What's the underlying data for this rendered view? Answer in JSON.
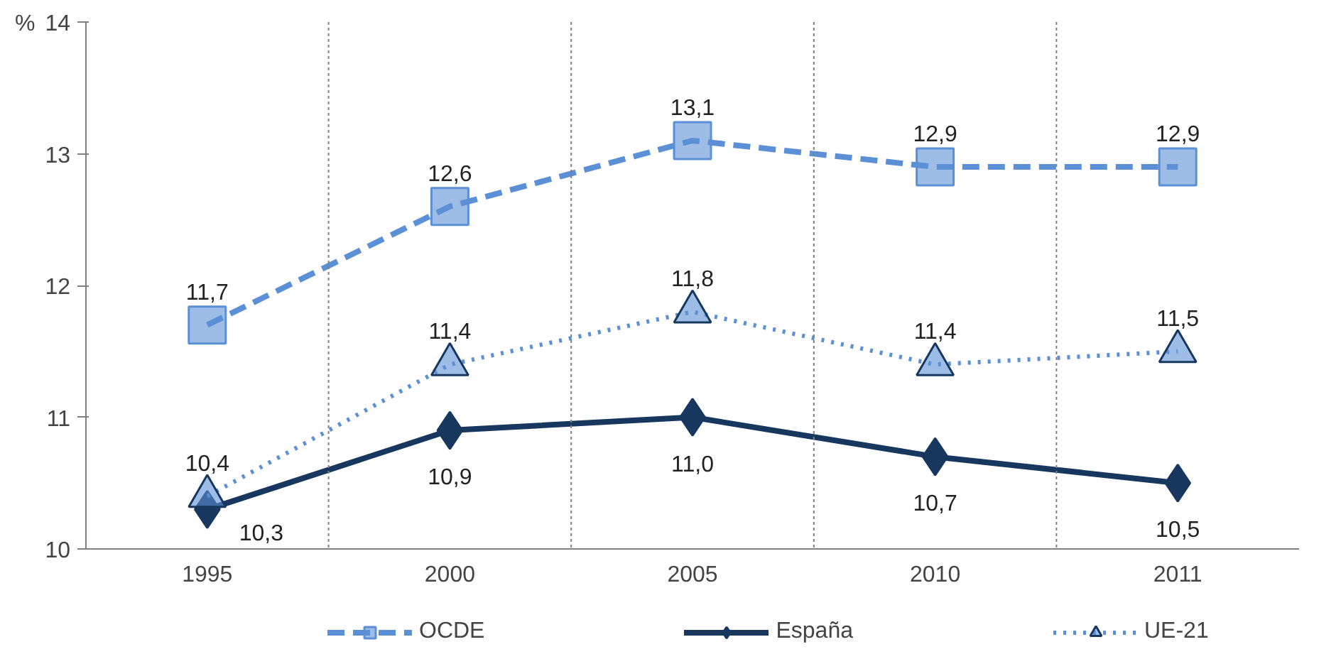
{
  "chart_data": {
    "type": "line",
    "ylabel": "%",
    "categories": [
      "1995",
      "2000",
      "2005",
      "2010",
      "2011"
    ],
    "series": [
      {
        "name": "OCDE",
        "color": "#5b8fd6",
        "marker": "square",
        "line_style": "dashed",
        "values": [
          11.7,
          12.6,
          13.1,
          12.9,
          12.9
        ],
        "value_labels": [
          "11,7",
          "12,6",
          "13,1",
          "12,9",
          "12,9"
        ]
      },
      {
        "name": "España",
        "color": "#17375e",
        "marker": "diamond",
        "line_style": "solid",
        "values": [
          10.3,
          10.9,
          11.0,
          10.7,
          10.5
        ],
        "value_labels": [
          "10,3",
          "10,9",
          "11,0",
          "10,7",
          "10,5"
        ]
      },
      {
        "name": "UE-21",
        "color": "#5b8fd6",
        "marker": "triangle",
        "line_style": "dotted",
        "values": [
          10.4,
          11.4,
          11.8,
          11.4,
          11.5
        ],
        "value_labels": [
          "10,4",
          "11,4",
          "11,8",
          "11,4",
          "11,5"
        ]
      }
    ],
    "ylim": [
      10,
      14
    ],
    "yticks": [
      10,
      11,
      12,
      13,
      14
    ],
    "grid": "x",
    "legend": "bottom"
  }
}
